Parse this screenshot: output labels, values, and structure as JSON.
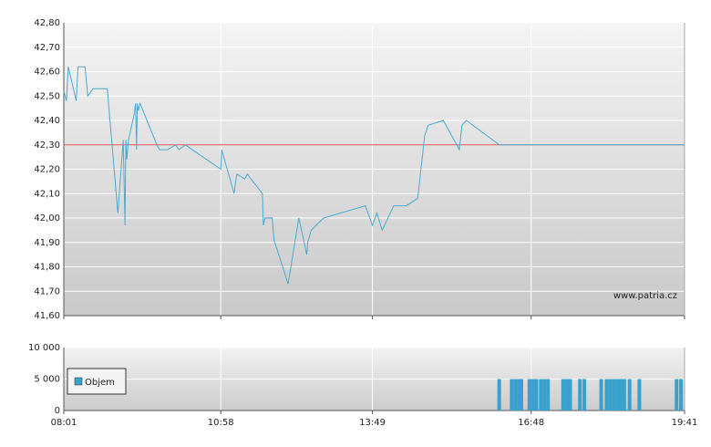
{
  "chart_data": [
    {
      "type": "line",
      "color": "#4aaad0",
      "x": [
        "08:01",
        "08:04",
        "08:06",
        "08:15",
        "08:17",
        "08:25",
        "08:28",
        "08:34",
        "08:50",
        "09:02",
        "09:08",
        "09:10",
        "09:11",
        "09:12",
        "09:14",
        "09:20",
        "09:22",
        "09:23",
        "09:24",
        "09:25",
        "09:27",
        "09:46",
        "09:49",
        "09:58",
        "10:07",
        "10:11",
        "10:18",
        "10:58",
        "10:59",
        "11:13",
        "11:16",
        "11:25",
        "11:28",
        "11:32",
        "11:45",
        "11:46",
        "11:48",
        "11:56",
        "11:58",
        "12:14",
        "12:26",
        "12:35",
        "12:36",
        "12:40",
        "12:54",
        "13:41",
        "13:49",
        "13:54",
        "14:00",
        "14:13",
        "14:27",
        "14:40",
        "14:48",
        "14:52",
        "15:09",
        "15:27",
        "15:30",
        "15:35",
        "16:12",
        "19:41"
      ],
      "values": [
        42.52,
        42.48,
        42.62,
        42.48,
        42.62,
        42.62,
        42.5,
        42.53,
        42.53,
        42.02,
        42.32,
        41.97,
        42.32,
        42.24,
        42.32,
        42.42,
        42.47,
        42.28,
        42.47,
        42.44,
        42.47,
        42.3,
        42.28,
        42.28,
        42.3,
        42.28,
        42.3,
        42.2,
        42.28,
        42.1,
        42.18,
        42.16,
        42.18,
        42.16,
        42.1,
        41.97,
        42.0,
        42.0,
        41.91,
        41.73,
        42.0,
        41.85,
        41.9,
        41.95,
        42.0,
        42.05,
        41.97,
        42.02,
        41.95,
        42.05,
        42.05,
        42.08,
        42.34,
        42.38,
        42.4,
        42.28,
        42.38,
        42.4,
        42.3,
        42.3
      ],
      "xlim": [
        "08:01",
        "19:41"
      ],
      "ylim": [
        41.6,
        42.8
      ],
      "yticks": [
        {
          "value": 41.6,
          "label": "41,60"
        },
        {
          "value": 41.7,
          "label": "41,70"
        },
        {
          "value": 41.8,
          "label": "41,80"
        },
        {
          "value": 41.9,
          "label": "41,90"
        },
        {
          "value": 42.0,
          "label": "42,00"
        },
        {
          "value": 42.1,
          "label": "42,10"
        },
        {
          "value": 42.2,
          "label": "42,20"
        },
        {
          "value": 42.3,
          "label": "42,30"
        },
        {
          "value": 42.4,
          "label": "42,40"
        },
        {
          "value": 42.5,
          "label": "42,50"
        },
        {
          "value": 42.6,
          "label": "42,60"
        },
        {
          "value": 42.7,
          "label": "42,70"
        },
        {
          "value": 42.8,
          "label": "42,80"
        }
      ],
      "reference_line": {
        "value": 42.3,
        "color": "#e05050"
      },
      "annotation": "www.patria.cz",
      "grid": true
    },
    {
      "type": "bar",
      "x": [
        "16:12",
        "16:26",
        "16:30",
        "16:34",
        "16:37",
        "16:46",
        "16:50",
        "16:54",
        "16:59",
        "17:03",
        "17:07",
        "17:24",
        "17:28",
        "17:32",
        "17:43",
        "17:48",
        "18:07",
        "18:13",
        "18:17",
        "18:21",
        "18:25",
        "18:29",
        "18:33",
        "18:39",
        "18:50",
        "19:32",
        "19:37"
      ],
      "series": [
        {
          "name": "Objem",
          "color": "#3aa0cc",
          "values": [
            5000,
            5000,
            5000,
            5000,
            5000,
            5000,
            5000,
            5000,
            5000,
            5000,
            5000,
            5000,
            5000,
            5000,
            5000,
            5000,
            5000,
            5000,
            5000,
            5000,
            5000,
            5000,
            5000,
            5000,
            5000,
            5000,
            5000
          ]
        }
      ],
      "xlim": [
        "08:01",
        "19:41"
      ],
      "xticks": [
        "08:01",
        "10:58",
        "13:49",
        "16:48",
        "19:41"
      ],
      "ylim": [
        0,
        10000
      ],
      "yticks": [
        0,
        {
          "value": 5000,
          "label": "5 000"
        },
        {
          "value": 10000,
          "label": "10 000"
        }
      ],
      "grid": true,
      "legend": "bottom-left"
    }
  ]
}
